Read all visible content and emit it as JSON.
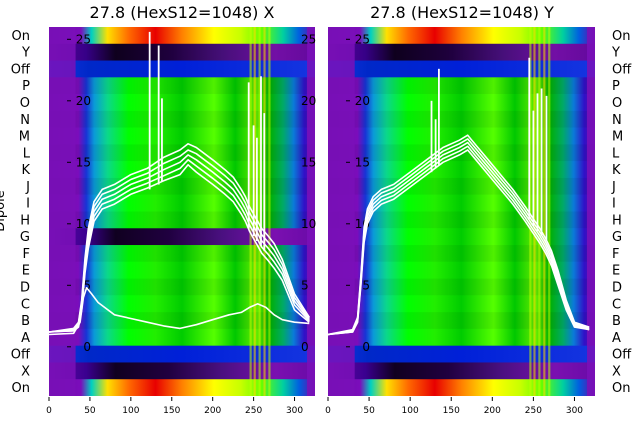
{
  "chart_data": [
    {
      "type": "heatmap",
      "title": "27.8 (HexS12=1048) X",
      "ylabel": "Dipole",
      "x_ticks": [
        0,
        50,
        100,
        150,
        200,
        250,
        300
      ],
      "xlim": [
        0,
        325
      ],
      "row_labels": [
        "On",
        "Y",
        "Off",
        "P",
        "O",
        "N",
        "M",
        "L",
        "K",
        "J",
        "I",
        "H",
        "G",
        "F",
        "E",
        "D",
        "C",
        "B",
        "A",
        "Off",
        "X",
        "On"
      ],
      "overlay_ticks": [
        25,
        20,
        15,
        10,
        5,
        0
      ],
      "overlay_ylim": [
        -4,
        26
      ],
      "traces": [
        {
          "x": [
            0,
            30,
            36,
            40,
            44,
            48,
            55,
            65,
            80,
            100,
            120,
            140,
            160,
            170,
            180,
            200,
            215,
            225,
            235,
            240,
            245,
            250,
            255,
            260,
            268,
            275,
            285,
            300,
            318
          ],
          "y": [
            1.2,
            1.3,
            1.6,
            3.0,
            6.0,
            8.0,
            10.2,
            11.2,
            11.6,
            12.4,
            12.9,
            13.5,
            14.0,
            14.8,
            14.2,
            13.2,
            12.4,
            11.8,
            10.8,
            10.2,
            9.4,
            8.8,
            8.2,
            7.6,
            7.0,
            6.4,
            5.4,
            3.0,
            2.0
          ]
        },
        {
          "x": [
            0,
            30,
            36,
            40,
            44,
            48,
            55,
            65,
            80,
            100,
            120,
            140,
            160,
            170,
            180,
            200,
            215,
            225,
            235,
            240,
            245,
            250,
            255,
            260,
            268,
            275,
            285,
            300,
            318
          ],
          "y": [
            1.2,
            1.3,
            1.7,
            3.2,
            6.3,
            8.4,
            10.6,
            11.6,
            12.0,
            12.8,
            13.3,
            13.9,
            14.5,
            15.2,
            14.7,
            13.7,
            12.9,
            12.3,
            11.3,
            10.7,
            9.9,
            9.3,
            8.7,
            8.1,
            7.5,
            6.9,
            5.9,
            3.4,
            2.1
          ]
        },
        {
          "x": [
            0,
            30,
            36,
            40,
            44,
            48,
            55,
            65,
            80,
            100,
            120,
            140,
            160,
            170,
            180,
            200,
            215,
            225,
            235,
            240,
            245,
            250,
            255,
            260,
            268,
            275,
            285,
            300,
            318
          ],
          "y": [
            1.2,
            1.4,
            1.8,
            3.4,
            6.6,
            8.8,
            11.0,
            12.0,
            12.4,
            13.2,
            13.7,
            14.4,
            15.0,
            15.6,
            15.2,
            14.2,
            13.4,
            12.8,
            11.8,
            11.2,
            10.4,
            9.8,
            9.2,
            8.6,
            8.0,
            7.4,
            6.3,
            3.7,
            2.2
          ]
        },
        {
          "x": [
            0,
            30,
            36,
            40,
            44,
            48,
            55,
            65,
            80,
            100,
            120,
            140,
            160,
            170,
            180,
            200,
            215,
            225,
            235,
            240,
            245,
            250,
            255,
            260,
            268,
            275,
            285,
            300,
            318
          ],
          "y": [
            1.2,
            1.4,
            1.9,
            3.6,
            6.9,
            9.2,
            11.4,
            12.4,
            12.8,
            13.6,
            14.1,
            14.9,
            15.5,
            16.0,
            15.7,
            14.7,
            13.9,
            13.3,
            12.3,
            11.7,
            10.9,
            10.3,
            9.7,
            9.1,
            8.5,
            7.9,
            6.7,
            4.0,
            2.3
          ]
        },
        {
          "x": [
            0,
            30,
            36,
            40,
            44,
            48,
            55,
            65,
            80,
            100,
            120,
            140,
            160,
            170,
            180,
            200,
            215,
            225,
            235,
            240,
            245,
            250,
            255,
            260,
            268,
            275,
            285,
            300,
            318
          ],
          "y": [
            1.2,
            1.5,
            2.0,
            3.8,
            7.2,
            9.6,
            11.8,
            12.8,
            13.2,
            14.0,
            14.5,
            15.4,
            16.0,
            16.5,
            16.2,
            15.2,
            14.4,
            13.8,
            12.8,
            12.2,
            11.4,
            10.8,
            10.2,
            9.6,
            9.0,
            8.4,
            7.1,
            4.3,
            2.4
          ]
        },
        {
          "x": [
            0,
            30,
            38,
            42,
            46,
            52,
            60,
            80,
            100,
            120,
            140,
            160,
            180,
            200,
            220,
            235,
            245,
            255,
            265,
            275,
            285,
            300,
            318
          ],
          "y": [
            1.0,
            1.1,
            2.0,
            4.0,
            4.8,
            4.3,
            3.6,
            2.6,
            2.3,
            2.0,
            1.7,
            1.5,
            1.8,
            2.2,
            2.6,
            2.8,
            3.2,
            3.5,
            3.2,
            2.6,
            2.2,
            2.0,
            1.9
          ]
        }
      ],
      "spikes": [
        {
          "x": 123,
          "y_from": 12.8,
          "y_to": 25.6
        },
        {
          "x": 134,
          "y_from": 13.2,
          "y_to": 24.5
        },
        {
          "x": 138,
          "y_from": 13.4,
          "y_to": 20.2
        },
        {
          "x": 244,
          "y_from": 9.6,
          "y_to": 21.5
        },
        {
          "x": 250,
          "y_from": 9.0,
          "y_to": 18.0
        },
        {
          "x": 254,
          "y_from": 8.6,
          "y_to": 17.0
        },
        {
          "x": 259,
          "y_from": 8.2,
          "y_to": 22.0
        },
        {
          "x": 263,
          "y_from": 7.8,
          "y_to": 19.0
        }
      ]
    },
    {
      "type": "heatmap",
      "title": "27.8 (HexS12=1048) Y",
      "x_ticks": [
        0,
        50,
        100,
        150,
        200,
        250,
        300
      ],
      "xlim": [
        0,
        325
      ],
      "row_labels": [
        "On",
        "Y",
        "Off",
        "P",
        "O",
        "N",
        "M",
        "L",
        "K",
        "J",
        "I",
        "H",
        "G",
        "F",
        "E",
        "D",
        "C",
        "B",
        "A",
        "Off",
        "X",
        "On"
      ],
      "overlay_ticks": [
        25,
        20,
        15,
        10,
        5,
        0
      ],
      "overlay_ylim": [
        -4,
        26
      ],
      "traces": [
        {
          "x": [
            0,
            30,
            36,
            40,
            44,
            48,
            55,
            65,
            80,
            100,
            120,
            140,
            160,
            170,
            180,
            195,
            210,
            225,
            240,
            250,
            258,
            265,
            272,
            280,
            290,
            300,
            318
          ],
          "y": [
            1.0,
            1.2,
            2.0,
            5.0,
            8.5,
            10.0,
            11.0,
            11.6,
            12.0,
            13.0,
            14.0,
            15.0,
            15.6,
            16.0,
            15.2,
            14.0,
            12.8,
            11.6,
            10.2,
            9.2,
            8.4,
            7.6,
            6.6,
            5.0,
            3.0,
            1.6,
            1.4
          ]
        },
        {
          "x": [
            0,
            30,
            36,
            40,
            44,
            48,
            55,
            65,
            80,
            100,
            120,
            140,
            160,
            170,
            180,
            195,
            210,
            225,
            240,
            250,
            258,
            265,
            272,
            280,
            290,
            300,
            318
          ],
          "y": [
            1.0,
            1.2,
            2.1,
            5.2,
            8.8,
            10.3,
            11.3,
            11.9,
            12.3,
            13.3,
            14.3,
            15.3,
            15.9,
            16.3,
            15.5,
            14.3,
            13.1,
            11.9,
            10.5,
            9.5,
            8.7,
            7.9,
            6.9,
            5.3,
            3.2,
            1.7,
            1.4
          ]
        },
        {
          "x": [
            0,
            30,
            36,
            40,
            44,
            48,
            55,
            65,
            80,
            100,
            120,
            140,
            160,
            170,
            180,
            195,
            210,
            225,
            240,
            250,
            258,
            265,
            272,
            280,
            290,
            300,
            318
          ],
          "y": [
            1.0,
            1.3,
            2.2,
            5.4,
            9.1,
            10.6,
            11.6,
            12.2,
            12.6,
            13.6,
            14.6,
            15.6,
            16.2,
            16.6,
            15.8,
            14.6,
            13.4,
            12.2,
            10.8,
            9.8,
            9.0,
            8.2,
            7.2,
            5.6,
            3.4,
            1.8,
            1.5
          ]
        },
        {
          "x": [
            0,
            30,
            36,
            40,
            44,
            48,
            55,
            65,
            80,
            100,
            120,
            140,
            160,
            170,
            180,
            195,
            210,
            225,
            240,
            250,
            258,
            265,
            272,
            280,
            290,
            300,
            318
          ],
          "y": [
            1.0,
            1.3,
            2.3,
            5.6,
            9.4,
            10.9,
            11.9,
            12.5,
            12.9,
            13.9,
            14.9,
            15.9,
            16.5,
            16.9,
            16.1,
            14.9,
            13.7,
            12.5,
            11.1,
            10.1,
            9.3,
            8.5,
            7.5,
            5.9,
            3.6,
            1.9,
            1.5
          ]
        },
        {
          "x": [
            0,
            30,
            36,
            40,
            44,
            48,
            55,
            65,
            80,
            100,
            120,
            140,
            160,
            170,
            180,
            195,
            210,
            225,
            240,
            250,
            258,
            265,
            272,
            280,
            290,
            300,
            318
          ],
          "y": [
            1.0,
            1.4,
            2.4,
            5.8,
            9.7,
            11.2,
            12.2,
            12.8,
            13.2,
            14.2,
            15.2,
            16.2,
            16.8,
            17.2,
            16.4,
            15.2,
            14.0,
            12.8,
            11.4,
            10.4,
            9.6,
            8.8,
            7.8,
            6.2,
            3.8,
            2.0,
            1.6
          ]
        }
      ],
      "spikes": [
        {
          "x": 126,
          "y_from": 14.2,
          "y_to": 20.0
        },
        {
          "x": 131,
          "y_from": 14.5,
          "y_to": 18.5
        },
        {
          "x": 135,
          "y_from": 14.8,
          "y_to": 22.6
        },
        {
          "x": 245,
          "y_from": 10.4,
          "y_to": 23.5
        },
        {
          "x": 250,
          "y_from": 9.8,
          "y_to": 19.2
        },
        {
          "x": 255,
          "y_from": 9.4,
          "y_to": 20.6
        },
        {
          "x": 260,
          "y_from": 9.0,
          "y_to": 21.0
        },
        {
          "x": 266,
          "y_from": 8.6,
          "y_to": 20.4
        }
      ]
    }
  ]
}
